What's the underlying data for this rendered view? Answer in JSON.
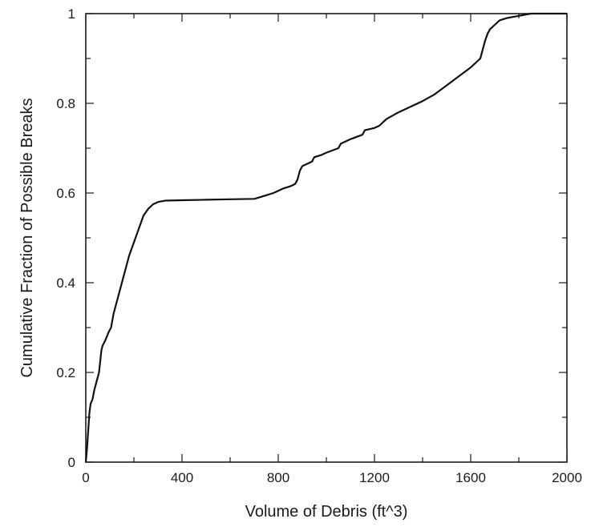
{
  "chart_data": {
    "type": "line",
    "title": "",
    "xlabel": "Volume of Debris (ft^3)",
    "ylabel": "Cumulative Fraction of Possible Breaks",
    "xlim": [
      0,
      2000
    ],
    "ylim": [
      0,
      1
    ],
    "grid": false,
    "legend": "none",
    "x_tick_labels": [
      "0",
      "400",
      "800",
      "1200",
      "1600",
      "2000"
    ],
    "y_tick_labels": [
      "0",
      "0.2",
      "0.4",
      "0.6",
      "0.8",
      "1"
    ],
    "x_major_ticks": [
      0,
      400,
      800,
      1200,
      1600,
      2000
    ],
    "y_major_ticks": [
      0,
      0.2,
      0.4,
      0.6,
      0.8,
      1
    ],
    "x_minor_ticks": [
      200,
      600,
      1000,
      1400,
      1800
    ],
    "y_minor_ticks": [
      0.1,
      0.3,
      0.5,
      0.7,
      0.9
    ],
    "series": [
      {
        "x": [
          0,
          5,
          10,
          15,
          20,
          28,
          35,
          45,
          55,
          65,
          70,
          80,
          95,
          105,
          115,
          125,
          140,
          160,
          180,
          200,
          220,
          240,
          260,
          280,
          300,
          320,
          330,
          400,
          500,
          600,
          700,
          720,
          750,
          780,
          800,
          820,
          850,
          870,
          880,
          890,
          900,
          920,
          940,
          950,
          980,
          1000,
          1050,
          1060,
          1080,
          1100,
          1150,
          1160,
          1200,
          1220,
          1250,
          1300,
          1340,
          1400,
          1450,
          1500,
          1550,
          1600,
          1640,
          1650,
          1660,
          1670,
          1680,
          1700,
          1720,
          1750,
          1800,
          1850,
          1900,
          1950,
          1980,
          2000
        ],
        "y": [
          0.0,
          0.03,
          0.07,
          0.11,
          0.13,
          0.14,
          0.16,
          0.18,
          0.2,
          0.25,
          0.26,
          0.27,
          0.29,
          0.3,
          0.33,
          0.35,
          0.38,
          0.42,
          0.46,
          0.49,
          0.52,
          0.55,
          0.565,
          0.575,
          0.58,
          0.582,
          0.583,
          0.584,
          0.585,
          0.586,
          0.587,
          0.59,
          0.595,
          0.6,
          0.605,
          0.61,
          0.615,
          0.62,
          0.63,
          0.65,
          0.66,
          0.665,
          0.67,
          0.68,
          0.685,
          0.69,
          0.7,
          0.71,
          0.715,
          0.72,
          0.73,
          0.74,
          0.745,
          0.75,
          0.765,
          0.78,
          0.79,
          0.805,
          0.82,
          0.84,
          0.86,
          0.88,
          0.9,
          0.92,
          0.94,
          0.955,
          0.965,
          0.975,
          0.985,
          0.99,
          0.995,
          1.0,
          1.0,
          1.0,
          1.0,
          1.0
        ]
      }
    ]
  }
}
